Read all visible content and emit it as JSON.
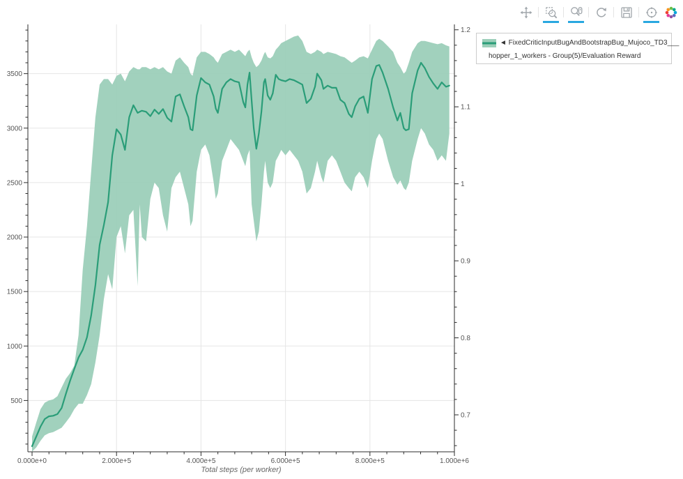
{
  "toolbar": {
    "tools": [
      {
        "name": "pan",
        "active": false
      },
      {
        "name": "box-zoom",
        "active": true
      },
      {
        "name": "wheel-zoom",
        "active": true
      },
      {
        "name": "reset",
        "active": false
      },
      {
        "name": "save",
        "active": false
      },
      {
        "name": "hover",
        "active": true
      }
    ],
    "logo": "bokeh"
  },
  "legend": {
    "line1": "◄ FixedCriticInputBugAndBootstrapBug_Mujoco_TD3___",
    "line2": "hopper_1_workers - Group(5)/Evaluation Reward"
  },
  "colors": {
    "line": "#2a9d78",
    "band": "#9ccfb9",
    "grid": "#e5e5e5",
    "axis": "#2b2b2b",
    "tick_label": "#555555",
    "axis_label": "#666666",
    "active_tool_underline": "#29a8e0",
    "toolbar_icon": "#a0a6ab",
    "legend_border": "#cccccc"
  },
  "chart_data": {
    "type": "line",
    "title": "",
    "grid": true,
    "legend_position": "top_right",
    "xlabel": "Total steps (per worker)",
    "x_axis": {
      "tick_labels": [
        "0.000e+0",
        "2.000e+5",
        "4.000e+5",
        "6.000e+5",
        "8.000e+5",
        "1.000e+6"
      ],
      "tick_values": [
        0,
        200000,
        400000,
        600000,
        800000,
        1000000
      ],
      "minor_step": 40000,
      "range": [
        0,
        1000000
      ]
    },
    "y_left": {
      "tick_labels": [
        "500",
        "1000",
        "1500",
        "2000",
        "2500",
        "3000",
        "3500"
      ],
      "tick_values": [
        500,
        1000,
        1500,
        2000,
        2500,
        3000,
        3500
      ],
      "minor_step": 100,
      "range": [
        29,
        3952
      ]
    },
    "y_right": {
      "tick_labels": [
        "0.7",
        "0.8",
        "0.9",
        "1",
        "1.1",
        "1.2"
      ],
      "tick_values": [
        0.7,
        0.8,
        0.9,
        1.0,
        1.1,
        1.2
      ],
      "minor_step": 0.02,
      "range": [
        0.652,
        1.207
      ]
    },
    "series": [
      {
        "name": "FixedCriticInputBugAndBootstrapBug_Mujoco_TD3___hopper_1_workers - Group(5)/Evaluation Reward",
        "line_color": "#2a9d78",
        "band_color": "#9ccfb9",
        "x_thousands": [
          0,
          10,
          20,
          30,
          40,
          50,
          60,
          70,
          80,
          90,
          100,
          110,
          120,
          130,
          140,
          150,
          160,
          170,
          180,
          190,
          200,
          210,
          220,
          230,
          240,
          250,
          255,
          260,
          270,
          280,
          290,
          300,
          310,
          320,
          330,
          340,
          350,
          360,
          370,
          375,
          380,
          390,
          400,
          410,
          420,
          430,
          435,
          440,
          450,
          460,
          470,
          480,
          490,
          495,
          500,
          505,
          510,
          515,
          520,
          525,
          531,
          537,
          543,
          549,
          552,
          558,
          564,
          570,
          577,
          584,
          590,
          600,
          610,
          620,
          630,
          640,
          650,
          660,
          670,
          675,
          685,
          690,
          700,
          710,
          720,
          730,
          740,
          750,
          757,
          765,
          775,
          785,
          795,
          805,
          815,
          822,
          830,
          843,
          855,
          865,
          872,
          880,
          885,
          892,
          900,
          913,
          921,
          930,
          940,
          950,
          960,
          970,
          980,
          988
        ],
        "mean": [
          80,
          170,
          260,
          330,
          355,
          360,
          375,
          430,
          560,
          680,
          790,
          895,
          965,
          1080,
          1280,
          1560,
          1930,
          2110,
          2320,
          2750,
          2990,
          2940,
          2800,
          3100,
          3210,
          3140,
          3150,
          3160,
          3150,
          3110,
          3170,
          3130,
          3175,
          3095,
          3060,
          3290,
          3310,
          3200,
          3100,
          2990,
          2980,
          3300,
          3460,
          3420,
          3400,
          3290,
          3180,
          3140,
          3360,
          3420,
          3450,
          3430,
          3420,
          3330,
          3240,
          3190,
          3400,
          3510,
          3250,
          3000,
          2810,
          2950,
          3150,
          3420,
          3450,
          3300,
          3260,
          3320,
          3490,
          3450,
          3440,
          3430,
          3450,
          3440,
          3420,
          3400,
          3230,
          3270,
          3380,
          3500,
          3440,
          3360,
          3390,
          3370,
          3370,
          3260,
          3230,
          3130,
          3100,
          3200,
          3270,
          3290,
          3140,
          3450,
          3570,
          3580,
          3510,
          3360,
          3190,
          3070,
          3140,
          3000,
          2980,
          2990,
          3320,
          3530,
          3600,
          3550,
          3470,
          3410,
          3360,
          3420,
          3380,
          3390
        ],
        "lo": [
          30,
          70,
          130,
          180,
          200,
          210,
          230,
          250,
          300,
          350,
          420,
          470,
          470,
          550,
          650,
          850,
          1100,
          1430,
          1660,
          1520,
          2000,
          2100,
          1850,
          2200,
          2250,
          1550,
          2300,
          2000,
          1960,
          2350,
          2500,
          2450,
          2200,
          2050,
          2450,
          2550,
          2600,
          2450,
          2300,
          2100,
          2150,
          2600,
          2800,
          2850,
          2750,
          2500,
          2350,
          2400,
          2700,
          2800,
          2900,
          2850,
          2800,
          2750,
          2700,
          2650,
          2750,
          2800,
          2300,
          2150,
          1960,
          2050,
          2300,
          2600,
          2700,
          2500,
          2450,
          2500,
          2700,
          2750,
          2800,
          2750,
          2800,
          2750,
          2700,
          2600,
          2400,
          2450,
          2600,
          2700,
          2550,
          2500,
          2700,
          2750,
          2700,
          2600,
          2500,
          2450,
          2420,
          2550,
          2600,
          2550,
          2450,
          2700,
          2900,
          2950,
          2900,
          2700,
          2550,
          2480,
          2520,
          2450,
          2430,
          2500,
          2700,
          2900,
          3000,
          2950,
          2850,
          2800,
          2700,
          2750,
          2700,
          2950
        ],
        "hi": [
          170,
          300,
          420,
          480,
          500,
          510,
          540,
          620,
          700,
          750,
          820,
          1100,
          1700,
          2100,
          2600,
          3100,
          3400,
          3450,
          3450,
          3400,
          3480,
          3500,
          3430,
          3520,
          3560,
          3540,
          3540,
          3560,
          3560,
          3540,
          3560,
          3540,
          3560,
          3520,
          3500,
          3620,
          3650,
          3600,
          3560,
          3500,
          3480,
          3650,
          3700,
          3700,
          3680,
          3650,
          3620,
          3600,
          3680,
          3700,
          3720,
          3700,
          3720,
          3700,
          3680,
          3660,
          3700,
          3720,
          3650,
          3600,
          3560,
          3580,
          3620,
          3680,
          3700,
          3650,
          3640,
          3660,
          3720,
          3750,
          3780,
          3800,
          3820,
          3840,
          3850,
          3800,
          3700,
          3680,
          3700,
          3720,
          3700,
          3680,
          3700,
          3690,
          3680,
          3660,
          3650,
          3620,
          3600,
          3620,
          3650,
          3660,
          3640,
          3720,
          3800,
          3820,
          3800,
          3750,
          3700,
          3600,
          3560,
          3500,
          3520,
          3600,
          3700,
          3780,
          3800,
          3800,
          3790,
          3780,
          3770,
          3780,
          3760,
          3750
        ]
      }
    ]
  }
}
